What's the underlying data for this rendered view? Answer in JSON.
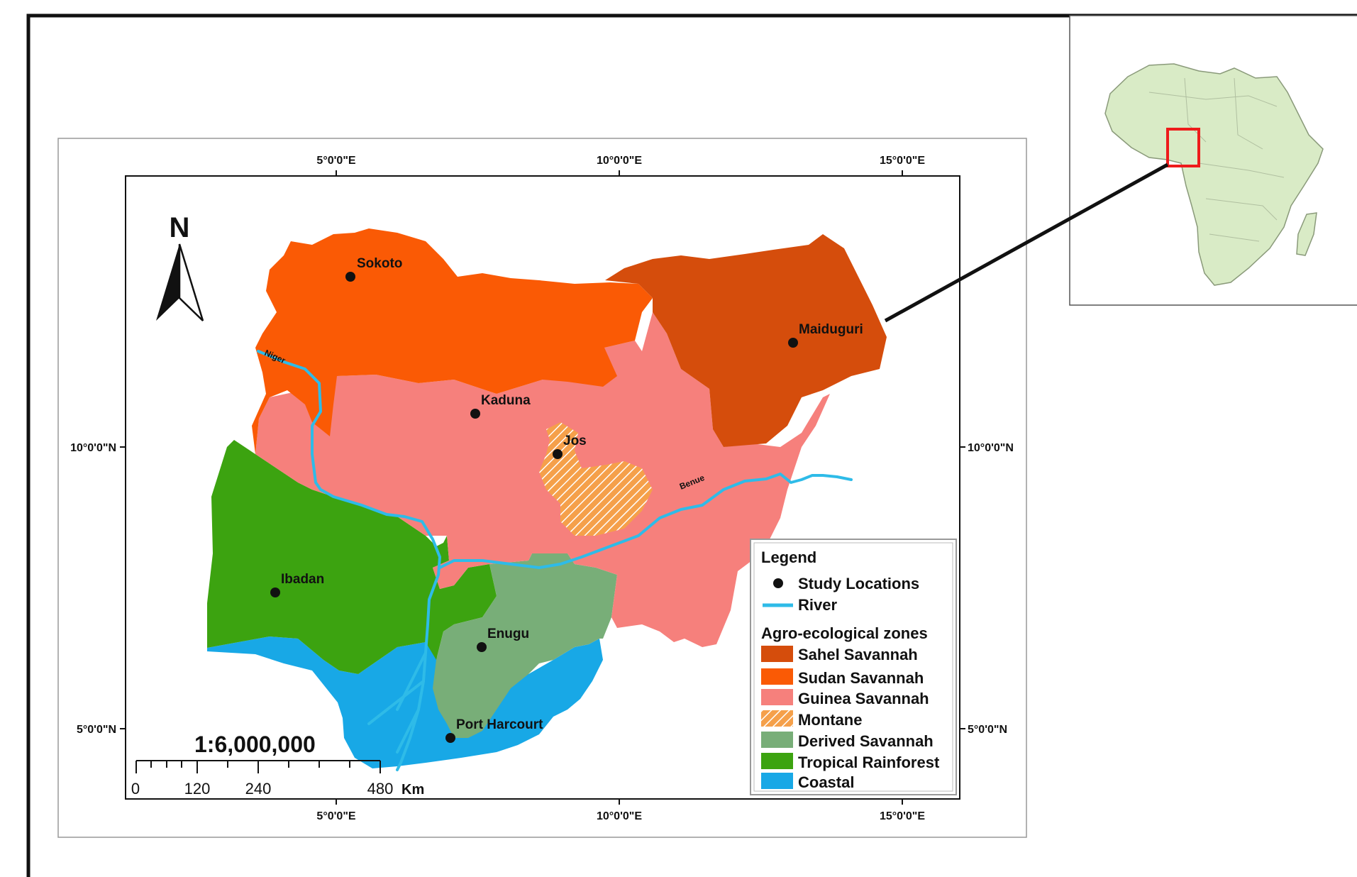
{
  "map": {
    "north_arrow": "N",
    "scale_ratio": "1:6,000,000",
    "scale_bar": {
      "ticks": [
        "0",
        "120",
        "240",
        "480"
      ],
      "unit": "Km"
    },
    "coords_top": [
      "5°0'0\"E",
      "10°0'0\"E",
      "15°0'0\"E"
    ],
    "coords_bottom": [
      "5°0'0\"E",
      "10°0'0\"E",
      "15°0'0\"E"
    ],
    "coords_left": [
      "10°0'0\"N",
      "5°0'0\"N"
    ],
    "coords_right": [
      "10°0'0\"N",
      "5°0'0\"N"
    ],
    "cities": {
      "sokoto": "Sokoto",
      "maiduguri": "Maiduguri",
      "kaduna": "Kaduna",
      "jos": "Jos",
      "ibadan": "Ibadan",
      "enugu": "Enugu",
      "port_harcourt": "Port Harcourt"
    },
    "rivers": {
      "niger": "Niger",
      "benue": "Benue"
    },
    "legend": {
      "title": "Legend",
      "study_locations": "Study Locations",
      "river": "River",
      "zones_title": "Agro-ecological zones",
      "zones": [
        {
          "name": "Sahel Savannah",
          "color": "#d54d0c"
        },
        {
          "name": "Sudan Savannah",
          "color": "#fa5a05"
        },
        {
          "name": "Guinea Savannah",
          "color": "#f6807c"
        },
        {
          "name": "Montane",
          "color": "#f5a04a",
          "pattern": "hatch"
        },
        {
          "name": "Derived Savannah",
          "color": "#78ae78"
        },
        {
          "name": "Tropical Rainforest",
          "color": "#3ca310"
        },
        {
          "name": "Coastal",
          "color": "#18a8e6"
        }
      ]
    },
    "colors": {
      "river": "#2ebbe8",
      "inset_land": "#d9ebc6",
      "inset_highlight": "#ee1b1b"
    }
  }
}
